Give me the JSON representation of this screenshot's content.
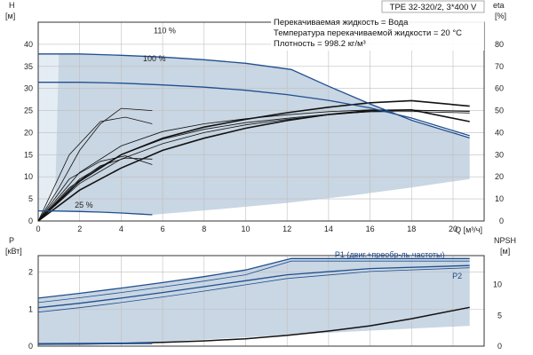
{
  "chart_data": [
    {
      "type": "line",
      "title": "TPE 32-320/2, 3*400 V",
      "xlabel": "Q [м³/ч]",
      "ylabel_left": "H [м]",
      "ylabel_right": "eta [%]",
      "xlim": [
        0,
        21.5
      ],
      "ylim_left": [
        0,
        45
      ],
      "ylim_right": [
        0,
        90
      ],
      "xticks": [
        0,
        2,
        4,
        6,
        8,
        10,
        12,
        14,
        16,
        18,
        20
      ],
      "yticks_left": [
        0,
        5,
        10,
        15,
        20,
        25,
        30,
        35,
        40
      ],
      "yticks_right": [
        0,
        10,
        20,
        30,
        40,
        50,
        60,
        70,
        80
      ],
      "grid": true,
      "info_lines": [
        "Перекачиваемая жидкость = Вода",
        "Температура перекачиваемой жидкости = 20 °C",
        "Плотность = 998.2 кг/м³"
      ],
      "series": [
        {
          "name": "110 %",
          "x": [
            0,
            2,
            4,
            6,
            8,
            10,
            12.2,
            14,
            16,
            18,
            20.8
          ],
          "values": [
            37.8,
            37.8,
            37.5,
            37.1,
            36.5,
            35.7,
            34.3,
            30.5,
            26.5,
            22.8,
            18.8
          ]
        },
        {
          "name": "100 %",
          "x": [
            0,
            2,
            4,
            6,
            8,
            10,
            12,
            14,
            16,
            18,
            20.8
          ],
          "values": [
            31.4,
            31.4,
            31.2,
            30.8,
            30.3,
            29.6,
            28.6,
            27.3,
            25.6,
            23.3,
            19.3
          ]
        },
        {
          "name": "25 %",
          "x": [
            0,
            1,
            2,
            3,
            4,
            5,
            5.5
          ],
          "values": [
            2.3,
            2.25,
            2.15,
            2.0,
            1.8,
            1.55,
            1.4
          ]
        }
      ],
      "efficiency": [
        {
          "x": [
            0,
            2,
            4,
            6,
            8,
            10,
            12,
            14,
            16,
            18,
            20.8
          ],
          "values": [
            0,
            22,
            34,
            40.5,
            44,
            46.3,
            48.1,
            49.5,
            50.3,
            50.2,
            49.6
          ]
        },
        {
          "x": [
            0,
            2,
            4,
            6,
            8,
            10,
            12,
            14,
            16,
            18,
            20.8
          ],
          "values": [
            0,
            19,
            30,
            37,
            41.5,
            44.5,
            46.5,
            48.3,
            49.4,
            49.6,
            48.9
          ]
        },
        {
          "x": [
            0,
            2,
            4,
            6,
            8,
            10,
            12,
            14,
            16,
            18,
            20.8
          ],
          "values": [
            0,
            17,
            28,
            35,
            40,
            43.5,
            46,
            48,
            49.6,
            50.2,
            49.8
          ]
        },
        {
          "x": [
            0,
            2,
            4,
            6,
            8,
            10,
            12,
            14,
            16,
            18,
            20.8
          ],
          "values": [
            0,
            18,
            30,
            37.5,
            42.5,
            46,
            49,
            51.5,
            53.5,
            54.5,
            52
          ]
        },
        {
          "x": [
            0,
            2,
            4,
            6,
            8,
            10,
            12,
            14,
            16,
            18,
            20.8
          ],
          "values": [
            0,
            14,
            24,
            32,
            37.5,
            42,
            45.5,
            48.2,
            50,
            50.3,
            45
          ]
        },
        {
          "x": [
            0,
            1.5,
            3,
            4.2,
            5.5
          ],
          "values": [
            0,
            30,
            45,
            47,
            44
          ]
        },
        {
          "x": [
            0,
            1.5,
            3,
            4.2,
            5.5
          ],
          "values": [
            0,
            19,
            27,
            29.5,
            25.5
          ]
        },
        {
          "x": [
            0,
            1.5,
            3,
            4.2,
            5.5
          ],
          "values": [
            0,
            15,
            25,
            28.5,
            28
          ]
        },
        {
          "x": [
            0,
            1,
            2,
            3,
            4,
            5.5
          ],
          "values": [
            0,
            15,
            32,
            44,
            51,
            50
          ]
        }
      ]
    },
    {
      "type": "line",
      "xlim": [
        0,
        21.5
      ],
      "ylabel_left": "P [кВт]",
      "ylabel_right": "NPSH [м]",
      "ylim_left": [
        0,
        2.45
      ],
      "ylim_right": [
        0,
        14.7
      ],
      "yticks_left": [
        0,
        1,
        2
      ],
      "yticks_right": [
        0,
        5,
        10
      ],
      "grid": true,
      "series": [
        {
          "name": "P1 (двиг.+преобр-ль частоты)",
          "x": [
            0,
            2,
            4,
            6,
            8,
            10,
            12.2,
            16,
            20.8
          ],
          "values": [
            1.3,
            1.43,
            1.57,
            1.72,
            1.88,
            2.06,
            2.37,
            2.37,
            2.37
          ]
        },
        {
          "name": "P2",
          "x": [
            0,
            2,
            4,
            6,
            8,
            10,
            12,
            16,
            20.8
          ],
          "values": [
            1.04,
            1.16,
            1.3,
            1.45,
            1.61,
            1.77,
            1.93,
            2.1,
            2.18
          ]
        },
        {
          "x": [
            0,
            2,
            4,
            6,
            8,
            10,
            12.2,
            16,
            20.8
          ],
          "values": [
            1.18,
            1.31,
            1.45,
            1.6,
            1.76,
            1.93,
            2.3,
            2.3,
            2.3
          ]
        },
        {
          "x": [
            0,
            2,
            4,
            6,
            8,
            10,
            12,
            16,
            20.8
          ],
          "values": [
            0.92,
            1.04,
            1.18,
            1.33,
            1.49,
            1.66,
            1.83,
            2.02,
            2.12
          ]
        },
        {
          "x": [
            0,
            3,
            5.5
          ],
          "values": [
            0.06,
            0.07,
            0.08
          ]
        }
      ],
      "npsh": {
        "x": [
          0,
          2,
          4,
          6,
          8,
          10,
          12,
          14,
          16,
          18,
          20.8
        ],
        "values": [
          0.3,
          0.35,
          0.45,
          0.6,
          0.85,
          1.2,
          1.75,
          2.45,
          3.3,
          4.45,
          6.3
        ]
      }
    }
  ],
  "colors": {
    "envelope": "#c9d6e3",
    "qh_line": "#1f4f8f",
    "eta_line": "#111111",
    "grid": "#bfbfbf"
  }
}
